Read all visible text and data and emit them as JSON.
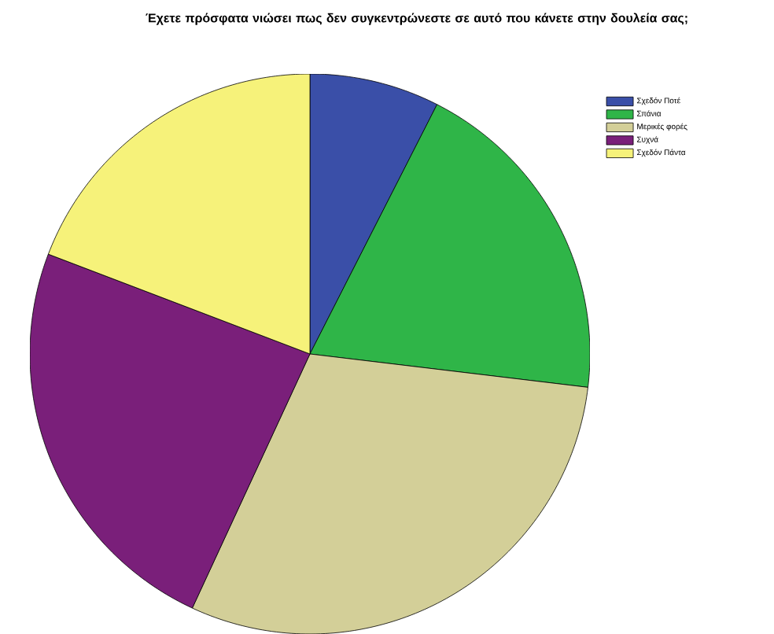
{
  "chart_data": {
    "type": "pie",
    "title": "Έχετε πρόσφατα νιώσει πως δεν συγκεντρώνεστε σε αυτό που κάνετε στην δουλεία σας;",
    "categories": [
      "Σχεδόν Ποτέ",
      "Σπάνια",
      "Μερικές φορές",
      "Συχνά",
      "Σχεδόν Πάντα"
    ],
    "values": [
      7.5,
      19.4,
      30.0,
      23.9,
      19.2
    ],
    "colors": [
      "#3a4fa8",
      "#2fb548",
      "#d3cf98",
      "#7a1f7a",
      "#f6f27a"
    ],
    "legend": "top right"
  }
}
